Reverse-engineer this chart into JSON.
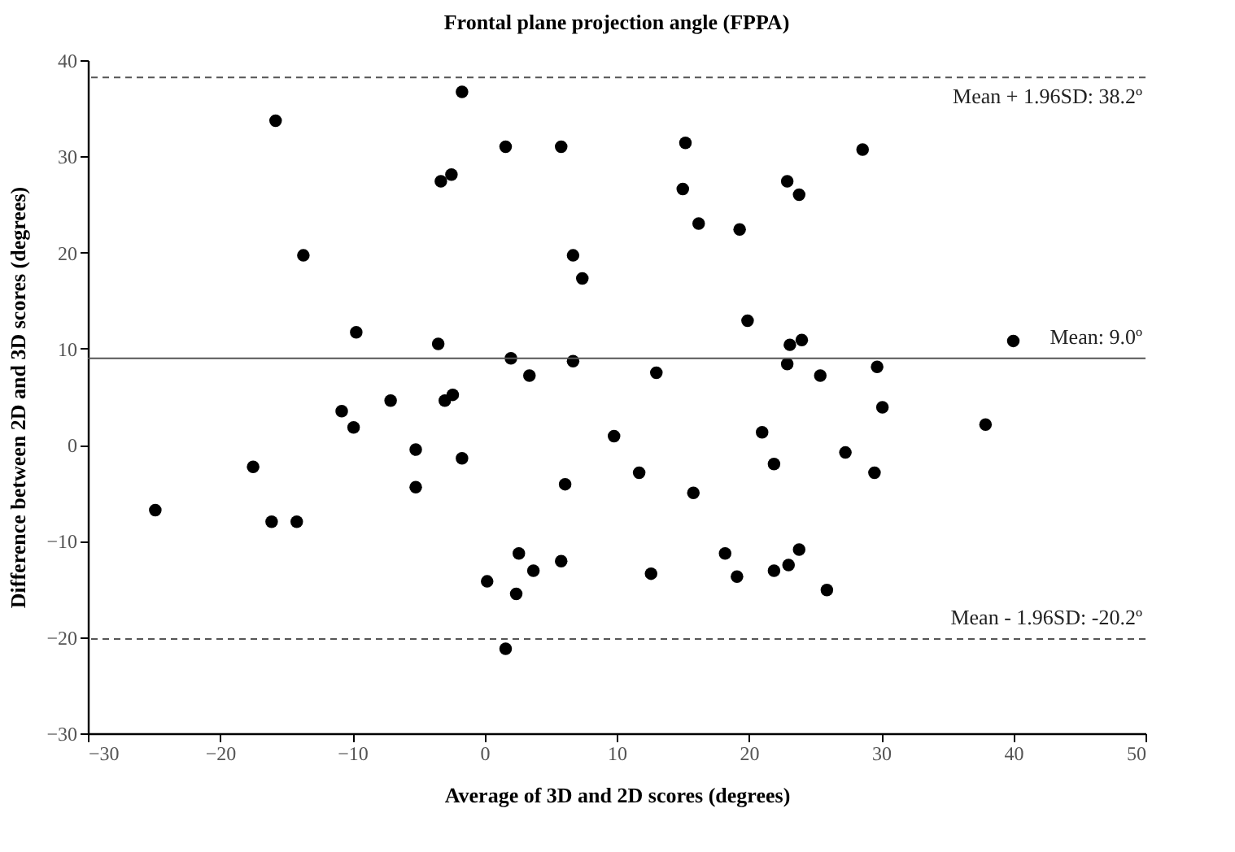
{
  "chart_data": {
    "type": "scatter",
    "title": "Frontal plane projection angle (FPPA)",
    "xlabel": "Average of 3D and 2D scores (degrees)",
    "ylabel": "Difference between 2D and 3D scores (degrees)",
    "x": [
      -15.8,
      -1.7,
      1.6,
      5.8,
      -3.3,
      -2.5,
      -13.7,
      6.7,
      7.4,
      -9.7,
      -3.5,
      2.0,
      6.7,
      3.4,
      -10.8,
      -7.1,
      -3.0,
      -2.4,
      15.2,
      15.0,
      16.2,
      19.3,
      28.6,
      22.9,
      23.8,
      19.9,
      23.1,
      24.0,
      40.0,
      13.0,
      22.9,
      25.4,
      29.7,
      30.1,
      -9.9,
      9.8,
      -5.2,
      -1.7,
      -17.5,
      -5.2,
      6.1,
      -24.9,
      -16.1,
      -14.2,
      2.6,
      5.8,
      3.7,
      0.2,
      2.4,
      1.6,
      21.0,
      37.9,
      11.7,
      21.9,
      27.3,
      29.5,
      15.8,
      18.2,
      12.6,
      19.1,
      21.9,
      23.0,
      23.8,
      25.9
    ],
    "values": [
      33.7,
      36.7,
      31.0,
      31.0,
      27.4,
      28.1,
      19.7,
      19.7,
      17.3,
      11.7,
      10.5,
      9.0,
      8.7,
      7.2,
      3.5,
      4.6,
      4.6,
      5.2,
      31.4,
      26.6,
      23.0,
      22.4,
      30.7,
      27.4,
      26.0,
      12.9,
      10.4,
      10.9,
      10.8,
      7.5,
      8.4,
      7.2,
      8.1,
      3.9,
      1.8,
      0.9,
      -0.5,
      -1.4,
      -2.3,
      -4.4,
      -4.1,
      -6.8,
      -8.0,
      -8.0,
      -11.3,
      -12.1,
      -13.1,
      -14.2,
      -15.5,
      -21.2,
      1.3,
      2.1,
      -2.9,
      -2.0,
      -0.8,
      -2.9,
      -5.0,
      -11.3,
      -13.4,
      -13.7,
      -13.1,
      -12.5,
      -10.9,
      -15.1
    ],
    "color": "#000000",
    "marker": "circle",
    "xlim": [
      -30,
      50
    ],
    "xticks": [
      -30,
      -20,
      -10,
      0,
      10,
      20,
      30,
      40,
      50
    ],
    "ylim": [
      -30,
      40
    ],
    "yticks": [
      -30,
      -20,
      -10,
      0,
      10,
      20,
      30,
      40
    ],
    "grid": false,
    "ref_lines": [
      {
        "axis": "y",
        "value": 38.2,
        "label": "Mean + 1.96SD: 38.2º",
        "color": "#555555",
        "line_style": "dashed"
      },
      {
        "axis": "y",
        "value": 9.0,
        "label": "Mean: 9.0º",
        "color": "#555555",
        "line_style": "solid"
      },
      {
        "axis": "y",
        "value": -20.2,
        "label": "Mean - 1.96SD: -20.2º",
        "color": "#555555",
        "line_style": "dashed"
      }
    ]
  }
}
